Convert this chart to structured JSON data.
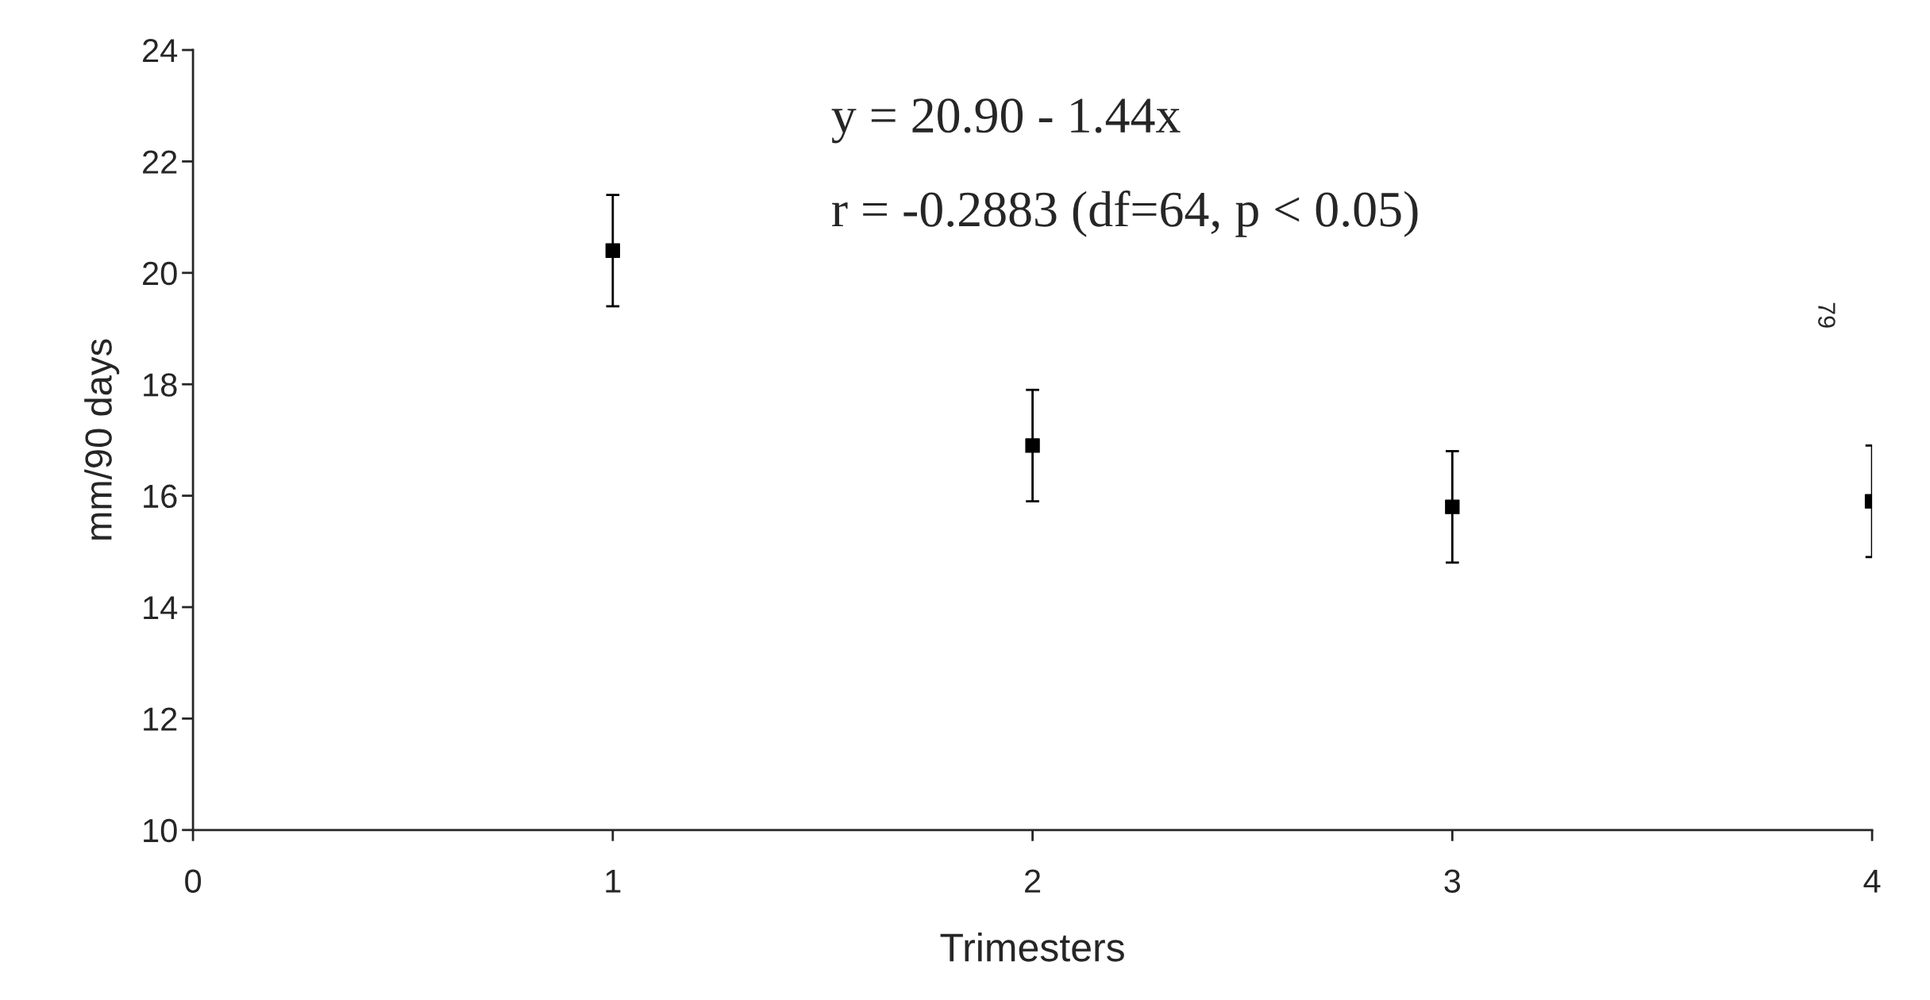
{
  "chart_data": {
    "type": "scatter",
    "xlabel": "Trimesters",
    "ylabel": "mm/90 days",
    "x": [
      1,
      2,
      3,
      4
    ],
    "series": [
      {
        "color": "#000000",
        "values": [
          20.4,
          16.9,
          15.8,
          15.9
        ],
        "errors": [
          1.0,
          1.0,
          1.0,
          1.0
        ]
      }
    ],
    "marker": "square",
    "xlim": [
      0,
      4
    ],
    "xticks": [
      0,
      1,
      2,
      3,
      4
    ],
    "ylim": [
      10,
      24
    ],
    "yticks": [
      10,
      12,
      14,
      16,
      18,
      20,
      22,
      24
    ],
    "grid": false,
    "legend": false,
    "annotations": [
      "y = 20.90 - 1.44x",
      "r = -0.2883 (df=64, p < 0.05)",
      "79"
    ]
  }
}
